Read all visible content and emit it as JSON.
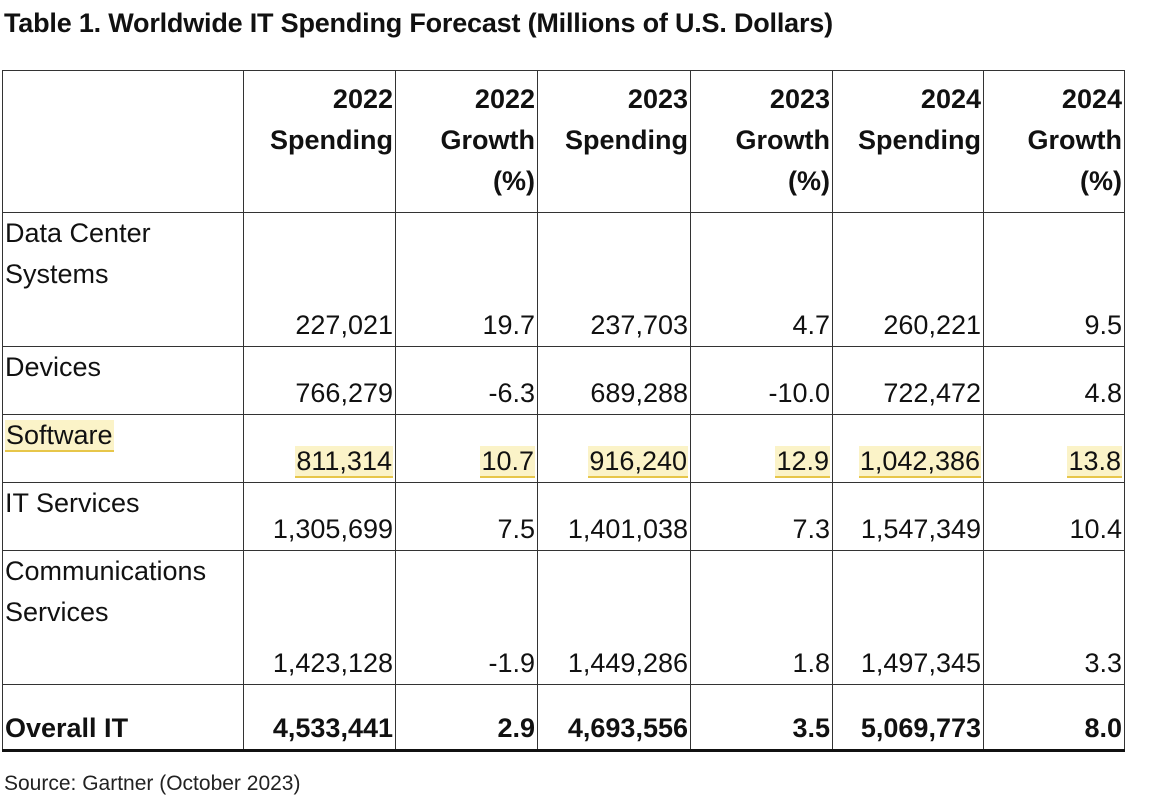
{
  "title": "Table 1. Worldwide IT Spending Forecast (Millions of U.S. Dollars)",
  "columns": [
    {
      "lines": [
        "2022",
        "Spending"
      ]
    },
    {
      "lines": [
        "2022",
        "Growth",
        "(%)"
      ]
    },
    {
      "lines": [
        "2023",
        "Spending"
      ]
    },
    {
      "lines": [
        "2023",
        "Growth",
        "(%)"
      ]
    },
    {
      "lines": [
        "2024",
        "Spending"
      ]
    },
    {
      "lines": [
        "2024",
        "Growth",
        "(%)"
      ]
    }
  ],
  "rows": [
    {
      "label_lines": [
        "Data Center",
        "Systems"
      ],
      "values": [
        "227,021",
        "19.7",
        "237,703",
        "4.7",
        "260,221",
        "9.5"
      ]
    },
    {
      "label_lines": [
        "Devices"
      ],
      "values": [
        "766,279",
        "-6.3",
        "689,288",
        "-10.0",
        "722,472",
        "4.8"
      ]
    },
    {
      "label_lines": [
        "Software"
      ],
      "values": [
        "811,314",
        "10.7",
        "916,240",
        "12.9",
        "1,042,386",
        "13.8"
      ],
      "highlighted": true,
      "highlight_color": "#fbf3c8"
    },
    {
      "label_lines": [
        "IT Services"
      ],
      "values": [
        "1,305,699",
        "7.5",
        "1,401,038",
        "7.3",
        "1,547,349",
        "10.4"
      ]
    },
    {
      "label_lines": [
        "Communications",
        "Services"
      ],
      "values": [
        "1,423,128",
        "-1.9",
        "1,449,286",
        "1.8",
        "1,497,345",
        "3.3"
      ]
    }
  ],
  "total": {
    "label": "Overall IT",
    "values": [
      "4,533,441",
      "2.9",
      "4,693,556",
      "3.5",
      "5,069,773",
      "8.0"
    ]
  },
  "source": "Source: Gartner (October 2023)"
}
